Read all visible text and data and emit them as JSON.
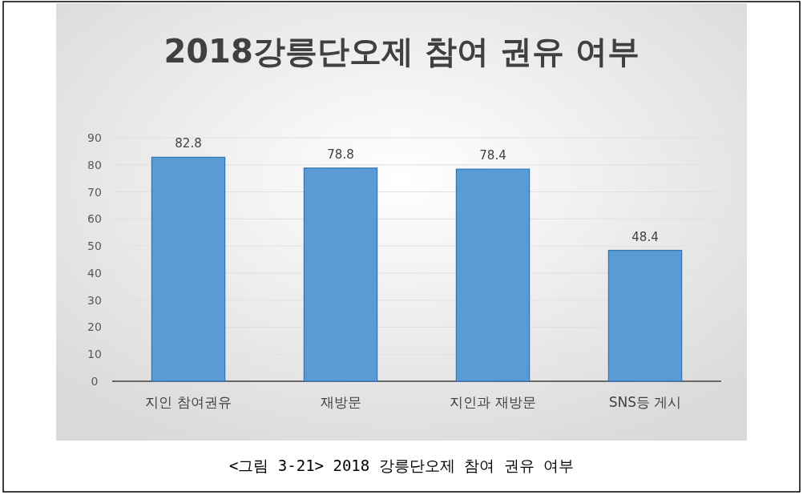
{
  "chart_data": {
    "type": "bar",
    "title": "2018강릉단오제 참여 권유 여부",
    "categories": [
      "지인 참여권유",
      "재방문",
      "지인과 재방문",
      "SNS등 게시"
    ],
    "values": [
      82.8,
      78.8,
      78.4,
      48.4
    ],
    "color": "#5b9bd5",
    "ylim": [
      0,
      90
    ],
    "yticks": [
      0,
      10,
      20,
      30,
      40,
      50,
      60,
      70,
      80,
      90
    ],
    "grid": "y",
    "data_labels": true,
    "annotations": [
      "<그림 3-21> 2018 강릉단오제 참여 권유 여부"
    ]
  }
}
